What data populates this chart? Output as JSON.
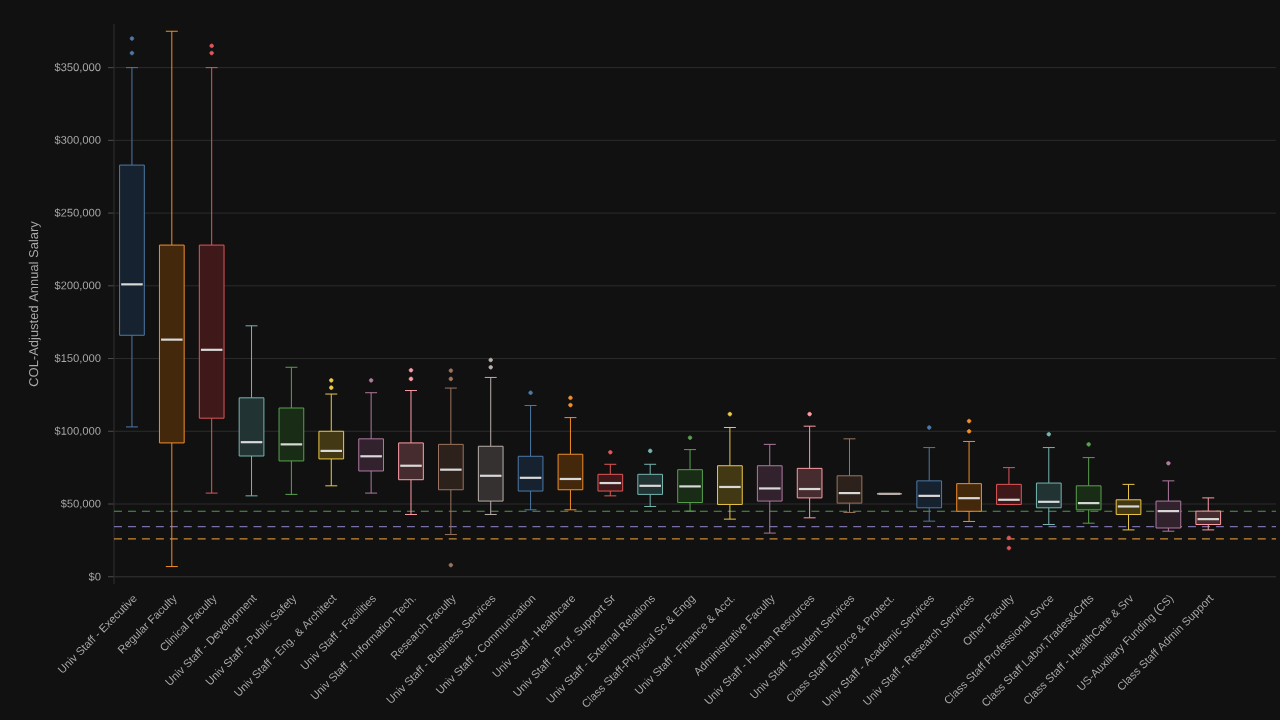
{
  "chart_data": {
    "type": "box",
    "ylabel": "COL-Adjusted Annual Salary",
    "categories": [
      "Univ Staff - Executive",
      "Regular Faculty",
      "Clinical Faculty",
      "Univ Staff - Development",
      "Univ Staff - Public Safety",
      "Univ Staff - Eng. & Architect",
      "Univ Staff - Facilities",
      "Univ Staff - Information Tech.",
      "Research Faculty",
      "Univ Staff - Business Services",
      "Univ Staff - Communication",
      "Univ Staff - Healthcare",
      "Univ Staff - Prof. Support Sr",
      "Univ Staff - External Relations",
      "Class Staff-Physical Sc & Engg",
      "Univ Staff - Finance & Acct.",
      "Administrative Faculty",
      "Univ Staff - Human Resources",
      "Univ Staff - Student Services",
      "Class Staff Enforce & Protect.",
      "Univ Staff - Academic Services",
      "Univ Staff - Research Services",
      "Other Faculty",
      "Class Staff Professional Srvce",
      "Class Staff Labor,Trades&Crfts",
      "Class Staff - HealthCare & Srv",
      "US-Auxiliary Funding (CS)",
      "Class Staff Admin Support"
    ],
    "colors": [
      "#4e79a7",
      "#f28e2b",
      "#e15759",
      "#76b7b2",
      "#59a14f",
      "#edc948",
      "#b07aa1",
      "#ff9da7",
      "#9c755f",
      "#bab0ac",
      "#4e79a7",
      "#f28e2b",
      "#e15759",
      "#76b7b2",
      "#59a14f",
      "#edc948",
      "#b07aa1",
      "#ff9da7",
      "#9c755f",
      "#bab0ac",
      "#4e79a7",
      "#f28e2b",
      "#e15759",
      "#76b7b2",
      "#59a14f",
      "#edc948",
      "#b07aa1",
      "#ff9da7"
    ],
    "boxes": [
      {
        "low": 103000,
        "q1": 166000,
        "median": 201000,
        "q3": 283000,
        "high": 350000,
        "outliers": [
          360000,
          370000
        ]
      },
      {
        "low": 7000,
        "q1": 92000,
        "median": 163000,
        "q3": 228000,
        "high": 375000
      },
      {
        "low": 57500,
        "q1": 109000,
        "median": 156000,
        "q3": 228000,
        "high": 350000,
        "outliers": [
          360000,
          365000
        ]
      },
      {
        "low": 55600,
        "q1": 83000,
        "median": 92500,
        "q3": 123000,
        "high": 172500
      },
      {
        "low": 56600,
        "q1": 79600,
        "median": 91000,
        "q3": 116000,
        "high": 144000
      },
      {
        "low": 62500,
        "q1": 81000,
        "median": 86500,
        "q3": 100000,
        "high": 125600,
        "outliers": [
          130000,
          135000
        ]
      },
      {
        "low": 57500,
        "q1": 72700,
        "median": 82800,
        "q3": 94800,
        "high": 126500,
        "outliers": [
          135000
        ]
      },
      {
        "low": 42800,
        "q1": 66700,
        "median": 76300,
        "q3": 92000,
        "high": 128000,
        "outliers": [
          136000,
          142000
        ]
      },
      {
        "low": 29000,
        "q1": 59800,
        "median": 73600,
        "q3": 91000,
        "high": 129700,
        "outliers": [
          136000,
          141700,
          8000
        ]
      },
      {
        "low": 42800,
        "q1": 52000,
        "median": 69400,
        "q3": 89700,
        "high": 137000,
        "outliers": [
          144000,
          149000
        ]
      },
      {
        "low": 46000,
        "q1": 58900,
        "median": 68000,
        "q3": 82800,
        "high": 117700,
        "outliers": [
          126500
        ]
      },
      {
        "low": 46000,
        "q1": 59800,
        "median": 67200,
        "q3": 84200,
        "high": 109400,
        "outliers": [
          118000,
          123000
        ]
      },
      {
        "low": 55600,
        "q1": 58900,
        "median": 64400,
        "q3": 70400,
        "high": 77300,
        "outliers": [
          85600
        ]
      },
      {
        "low": 48300,
        "q1": 56600,
        "median": 62500,
        "q3": 70400,
        "high": 77300,
        "outliers": [
          86500
        ]
      },
      {
        "low": 45100,
        "q1": 51000,
        "median": 62100,
        "q3": 73600,
        "high": 87400,
        "outliers": [
          95600
        ]
      },
      {
        "low": 39600,
        "q1": 49700,
        "median": 61700,
        "q3": 76300,
        "high": 102600,
        "outliers": [
          111800
        ]
      },
      {
        "low": 30000,
        "q1": 52000,
        "median": 60700,
        "q3": 76300,
        "high": 91000
      },
      {
        "low": 40500,
        "q1": 54200,
        "median": 60300,
        "q3": 74500,
        "high": 103500,
        "outliers": [
          111800
        ]
      },
      {
        "low": 44200,
        "q1": 50600,
        "median": 57500,
        "q3": 69400,
        "high": 94800
      },
      {
        "low": 57000,
        "q1": 57000,
        "median": 57000,
        "q3": 57000,
        "high": 57000
      },
      {
        "low": 38200,
        "q1": 47400,
        "median": 55600,
        "q3": 65900,
        "high": 88800,
        "outliers": [
          102600
        ]
      },
      {
        "low": 38000,
        "q1": 45000,
        "median": 54000,
        "q3": 64000,
        "high": 93000,
        "outliers": [
          100000,
          107000
        ]
      },
      {
        "low": 49700,
        "q1": 49700,
        "median": 52900,
        "q3": 63500,
        "high": 75000,
        "outliers": [
          26700,
          19700
        ]
      },
      {
        "low": 35900,
        "q1": 47400,
        "median": 51500,
        "q3": 64400,
        "high": 88800,
        "outliers": [
          98000
        ]
      },
      {
        "low": 36800,
        "q1": 46000,
        "median": 50600,
        "q3": 62500,
        "high": 81900,
        "outliers": [
          91000
        ]
      },
      {
        "low": 32200,
        "q1": 42800,
        "median": 48300,
        "q3": 52900,
        "high": 63500
      },
      {
        "low": 31300,
        "q1": 33500,
        "median": 45100,
        "q3": 52000,
        "high": 65900,
        "outliers": [
          78000
        ]
      },
      {
        "low": 32200,
        "q1": 35900,
        "median": 39600,
        "q3": 45100,
        "high": 54200
      }
    ],
    "ylim": [
      -5000,
      380000
    ],
    "yticks": [
      {
        "value": 0,
        "label": "$0"
      },
      {
        "value": 50000,
        "label": "$50,000"
      },
      {
        "value": 100000,
        "label": "$100,000"
      },
      {
        "value": 150000,
        "label": "$150,000"
      },
      {
        "value": 200000,
        "label": "$200,000"
      },
      {
        "value": 250000,
        "label": "$250,000"
      },
      {
        "value": 300000,
        "label": "$300,000"
      },
      {
        "value": 350000,
        "label": "$350,000"
      }
    ],
    "grid": "y",
    "ref_lines": [
      {
        "axis": "y",
        "value": 45000,
        "color": "#4f9a4f",
        "line_style": "dashed"
      },
      {
        "axis": "y",
        "value": 34500,
        "color": "#7b6fa8",
        "line_style": "dashed"
      },
      {
        "axis": "y",
        "value": 26000,
        "color": "#c8893a",
        "line_style": "dashed"
      }
    ]
  }
}
